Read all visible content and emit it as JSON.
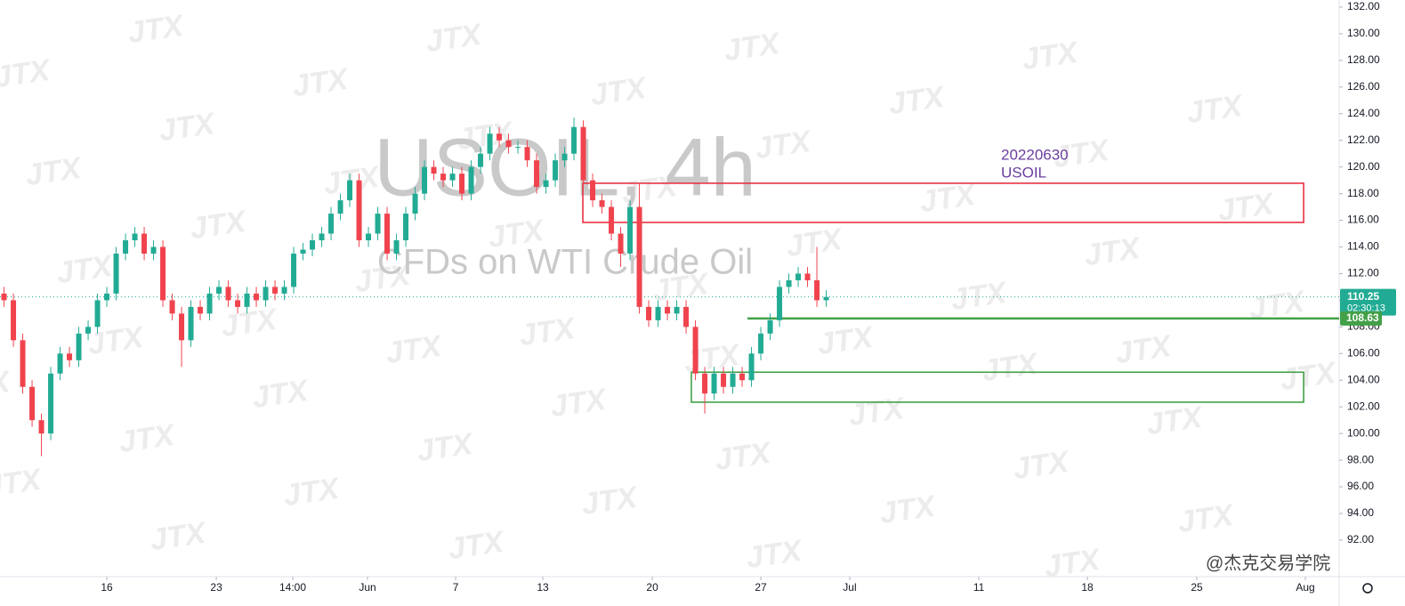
{
  "chart_data": {
    "type": "candlestick",
    "symbol_title": "USOIL, 4h",
    "symbol_description": "CFDs on WTI Crude Oil",
    "annotation": [
      "20220630",
      "USOIL"
    ],
    "annotation_color": "#6a3ea1",
    "up_color": "#22ab94",
    "down_color": "#f0434e",
    "candles": {
      "x": [
        -6.6,
        -6,
        -5.4,
        -4.8,
        -4.2,
        -3.6,
        -3,
        -2.4,
        -1.8,
        -1.2,
        -0.6,
        0,
        0.6,
        1.2,
        1.8,
        2.4,
        3,
        3.6,
        4.2,
        4.8,
        5.4,
        6,
        6.6,
        7.2,
        7.8,
        8.4,
        9,
        9.6,
        10.2,
        10.8,
        11.4,
        12,
        12.6,
        13.2,
        13.8,
        14.4,
        15,
        15.6,
        16.2,
        16.8,
        17.4,
        18,
        18.6,
        19.2,
        19.8,
        20.4,
        21,
        21.6,
        22.2,
        22.8,
        23.4,
        24,
        24.6,
        25.2,
        25.8,
        26.4,
        27,
        27.6,
        28.2,
        28.8,
        29.4,
        30,
        30.6,
        31.2,
        31.8,
        32.4,
        33,
        33.6,
        34.2,
        34.8,
        35.4,
        36,
        36.6,
        37.2,
        37.8,
        38.4,
        39,
        39.6,
        40.2,
        40.8,
        41.4,
        42,
        42.6,
        43.2,
        43.8,
        44.4,
        45,
        45.6,
        46.2
      ],
      "open": [
        110.5,
        110,
        107,
        103.5,
        101,
        100,
        104.5,
        106,
        105.5,
        107.5,
        108,
        110,
        110.5,
        113.5,
        114.5,
        115,
        113.5,
        114,
        110,
        109,
        107,
        109.5,
        109,
        110.5,
        111,
        110,
        109.5,
        110.5,
        110,
        111,
        110.5,
        111,
        113.5,
        113.8,
        114.5,
        115,
        116.5,
        117.5,
        119,
        114.5,
        115,
        116.5,
        113.5,
        114.5,
        116.5,
        118,
        120,
        119.5,
        119,
        119.5,
        118,
        120,
        121,
        122.5,
        122,
        121.5,
        121.5,
        120.5,
        118.5,
        119,
        120.5,
        121,
        123,
        119,
        117.5,
        117,
        115,
        113.5,
        117,
        109.5,
        108.5,
        109.5,
        109,
        109.5,
        108,
        104.5,
        103,
        104.5,
        103.5,
        104.5,
        104,
        106,
        107.5,
        108.5,
        111,
        111.5,
        112,
        111.5,
        110
      ],
      "high": [
        111,
        110.5,
        107.5,
        104,
        101.5,
        105,
        106.5,
        106.5,
        108,
        108.5,
        110.5,
        111,
        114,
        115,
        115.5,
        115.5,
        114.5,
        114.5,
        110.5,
        109.5,
        110,
        110,
        111,
        111.5,
        111.5,
        110.5,
        111,
        111,
        111.5,
        111.5,
        111.5,
        114,
        114.3,
        115,
        115.5,
        117,
        118,
        119.5,
        119.5,
        115.5,
        117,
        117,
        115,
        117,
        118.5,
        120.5,
        120.5,
        120,
        120,
        120,
        120.5,
        121.5,
        123,
        123,
        122.5,
        122,
        122,
        121,
        119.5,
        121,
        121.5,
        123.7,
        123.5,
        119.5,
        118,
        117.5,
        115.5,
        117.5,
        118.8,
        110,
        110,
        110,
        110,
        110,
        108.5,
        105,
        105,
        105,
        105,
        105,
        106.5,
        108,
        109,
        111.5,
        112,
        112.5,
        112.5,
        114,
        110.75
      ],
      "low": [
        109.5,
        106.5,
        103,
        100.5,
        98.3,
        99.5,
        104,
        105,
        105,
        107,
        107.5,
        109.5,
        110,
        113,
        114,
        113,
        113,
        109.5,
        108.5,
        105,
        106.5,
        108.5,
        108.5,
        110,
        109.5,
        109,
        109,
        109.5,
        109.5,
        110,
        110,
        110.5,
        113,
        113.3,
        114,
        114.5,
        116,
        117,
        114,
        114,
        114.5,
        113,
        113,
        114,
        116,
        117.5,
        119,
        118.5,
        118.5,
        117.5,
        117.5,
        119.5,
        120.5,
        121.5,
        121,
        121,
        120,
        118,
        118,
        118.5,
        120,
        120.5,
        118.5,
        117,
        116.5,
        114.5,
        112.5,
        113,
        109,
        108,
        108,
        108.5,
        108.5,
        107.5,
        104,
        101.5,
        102.5,
        103,
        103,
        103.5,
        103.5,
        105.5,
        107,
        108,
        110.5,
        111,
        111,
        109.5,
        109.5
      ],
      "close": [
        110,
        107,
        103.5,
        101,
        100,
        104.5,
        106,
        105.5,
        107.5,
        108,
        110,
        110.5,
        113.5,
        114.5,
        115,
        113.5,
        114,
        110,
        109,
        107,
        109.5,
        109,
        110.5,
        111,
        110,
        109.5,
        110.5,
        110,
        111,
        110.5,
        111,
        113.5,
        113.8,
        114.5,
        115,
        116.5,
        117.5,
        119,
        114.5,
        115,
        116.5,
        113.5,
        114.5,
        116.5,
        118,
        120,
        119.5,
        119,
        119.5,
        118,
        120,
        121,
        122.5,
        122,
        121.5,
        121.5,
        120.5,
        118.5,
        119,
        120.5,
        121,
        123,
        119,
        117.5,
        117,
        115,
        113.5,
        117,
        109.5,
        108.5,
        109.5,
        109,
        109.5,
        108,
        104.5,
        103,
        104.5,
        103.5,
        104.5,
        104,
        106,
        107.5,
        108.5,
        111,
        111.5,
        112,
        111.5,
        110,
        110.25
      ]
    },
    "xlim": [
      -6.86,
      79.14
    ],
    "xticks": [
      {
        "value": 0,
        "label": "16"
      },
      {
        "value": 7.03,
        "label": "23"
      },
      {
        "value": 11.94,
        "label": "14:00"
      },
      {
        "value": 16.74,
        "label": "Jun"
      },
      {
        "value": 22.4,
        "label": "7"
      },
      {
        "value": 28,
        "label": "13"
      },
      {
        "value": 35.03,
        "label": "20"
      },
      {
        "value": 42,
        "label": "27"
      },
      {
        "value": 47.71,
        "label": "Jul"
      },
      {
        "value": 56,
        "label": "11"
      },
      {
        "value": 62.97,
        "label": "18"
      },
      {
        "value": 70,
        "label": "25"
      },
      {
        "value": 76.97,
        "label": "Aug"
      }
    ],
    "ylim": [
      89.26,
      132.53
    ],
    "yticks": [
      {
        "value": 92,
        "label": "92.00"
      },
      {
        "value": 94,
        "label": "94.00"
      },
      {
        "value": 96,
        "label": "96.00"
      },
      {
        "value": 98,
        "label": "98.00"
      },
      {
        "value": 100,
        "label": "100.00"
      },
      {
        "value": 102,
        "label": "102.00"
      },
      {
        "value": 104,
        "label": "104.00"
      },
      {
        "value": 106,
        "label": "106.00"
      },
      {
        "value": 108,
        "label": "108.00"
      },
      {
        "value": 110,
        "label": "110.00"
      },
      {
        "value": 112,
        "label": "112.00"
      },
      {
        "value": 114,
        "label": "114.00"
      },
      {
        "value": 116,
        "label": "116.00"
      },
      {
        "value": 118,
        "label": "118.00"
      },
      {
        "value": 120,
        "label": "120.00"
      },
      {
        "value": 122,
        "label": "122.00"
      },
      {
        "value": 124,
        "label": "124.00"
      },
      {
        "value": 126,
        "label": "126.00"
      },
      {
        "value": 128,
        "label": "128.00"
      },
      {
        "value": 130,
        "label": "130.00"
      },
      {
        "value": 132,
        "label": "132.00"
      }
    ],
    "zones": [
      {
        "color": "#e8313f",
        "x0": 30.57,
        "x1": 76.86,
        "y0": 115.84,
        "y1": 118.78
      },
      {
        "color": "#43a047",
        "x0": 37.54,
        "x1": 76.86,
        "y0": 102.35,
        "y1": 104.6
      }
    ],
    "level": {
      "color": "#43a047",
      "x0": 41.14,
      "value": 108.63
    },
    "last_price": {
      "value": 110.25,
      "countdown": "02:30:13",
      "color": "#22ab94"
    }
  },
  "watermark": "JTX",
  "logo": "@杰克交易学院"
}
